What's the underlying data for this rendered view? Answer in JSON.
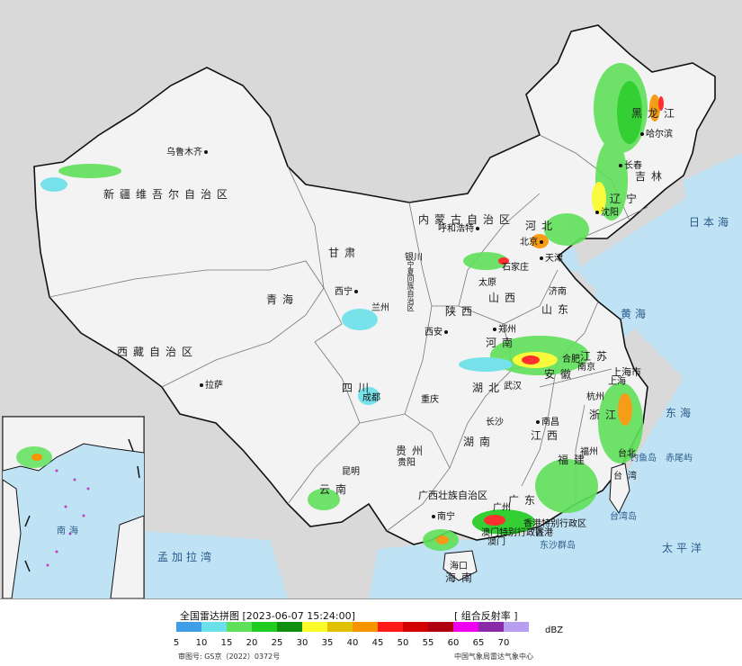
{
  "map": {
    "cities": [
      {
        "name": "乌鲁木齐"
      },
      {
        "name": "呼和浩特"
      },
      {
        "name": "哈尔滨"
      },
      {
        "name": "长春"
      },
      {
        "name": "沈阳"
      },
      {
        "name": "北京"
      },
      {
        "name": "天津"
      },
      {
        "name": "石家庄"
      },
      {
        "name": "太原"
      },
      {
        "name": "银川"
      },
      {
        "name": "西宁"
      },
      {
        "name": "兰州"
      },
      {
        "name": "西安"
      },
      {
        "name": "郑州"
      },
      {
        "name": "济南"
      },
      {
        "name": "合肥"
      },
      {
        "name": "南京"
      },
      {
        "name": "上海"
      },
      {
        "name": "杭州"
      },
      {
        "name": "武汉"
      },
      {
        "name": "南昌"
      },
      {
        "name": "长沙"
      },
      {
        "name": "福州"
      },
      {
        "name": "台北"
      },
      {
        "name": "重庆"
      },
      {
        "name": "成都"
      },
      {
        "name": "贵阳"
      },
      {
        "name": "昆明"
      },
      {
        "name": "南宁"
      },
      {
        "name": "广州"
      },
      {
        "name": "香港"
      },
      {
        "name": "澳门"
      },
      {
        "name": "海口"
      },
      {
        "name": "拉萨"
      }
    ],
    "regions": [
      {
        "name": "新疆维吾尔自治区"
      },
      {
        "name": "西藏自治区"
      },
      {
        "name": "青海"
      },
      {
        "name": "甘肃"
      },
      {
        "name": "内蒙古自治区"
      },
      {
        "name": "黑龙江"
      },
      {
        "name": "吉林"
      },
      {
        "name": "辽宁"
      },
      {
        "name": "河北"
      },
      {
        "name": "山西"
      },
      {
        "name": "陕西"
      },
      {
        "name": "河南"
      },
      {
        "name": "山东"
      },
      {
        "name": "江苏"
      },
      {
        "name": "安徽"
      },
      {
        "name": "湖北"
      },
      {
        "name": "四川"
      },
      {
        "name": "贵州"
      },
      {
        "name": "云南"
      },
      {
        "name": "湖南"
      },
      {
        "name": "江西"
      },
      {
        "name": "浙江"
      },
      {
        "name": "福建"
      },
      {
        "name": "广东"
      },
      {
        "name": "广西壮族自治区"
      },
      {
        "name": "海南"
      },
      {
        "name": "台湾"
      },
      {
        "name": "宁夏回族自治区"
      },
      {
        "name": "香港特别行政区"
      },
      {
        "name": "澳门特别行政区"
      },
      {
        "name": "上海市"
      }
    ],
    "seas": {
      "japan_sea": "日本海",
      "yellow_sea": "黄海",
      "east_sea": "东海",
      "pacific": "太平洋",
      "bengal": "孟加拉湾",
      "south_sea": "南海"
    },
    "islands": {
      "diaoyu": "钓鱼岛",
      "chiwei": "赤尾屿",
      "dongsha": "东沙群岛",
      "taiwan": "台湾岛"
    },
    "land_color": "#f3f3f3",
    "outside_color": "#d9d9d9",
    "water_color": "#bfe3f5"
  },
  "legend": {
    "title": "全国雷达拼图 [2023-06-07 15:24:00]",
    "product": "[ 组合反射率 ]",
    "unit": "dBZ",
    "ticks": [
      "5",
      "10",
      "15",
      "20",
      "25",
      "30",
      "35",
      "40",
      "45",
      "50",
      "55",
      "60",
      "65",
      "70"
    ],
    "colors": [
      "#3f9ee6",
      "#6ae0ea",
      "#5fe05a",
      "#1fcc1f",
      "#0e8f0e",
      "#fbfb2a",
      "#e0c000",
      "#f79400",
      "#ff1a1a",
      "#d30000",
      "#b00010",
      "#f000f0",
      "#8a2aa8",
      "#b89ef0"
    ],
    "approval": "审图号: GS京（2022）0372号",
    "credit": "中国气象局雷达气象中心"
  }
}
